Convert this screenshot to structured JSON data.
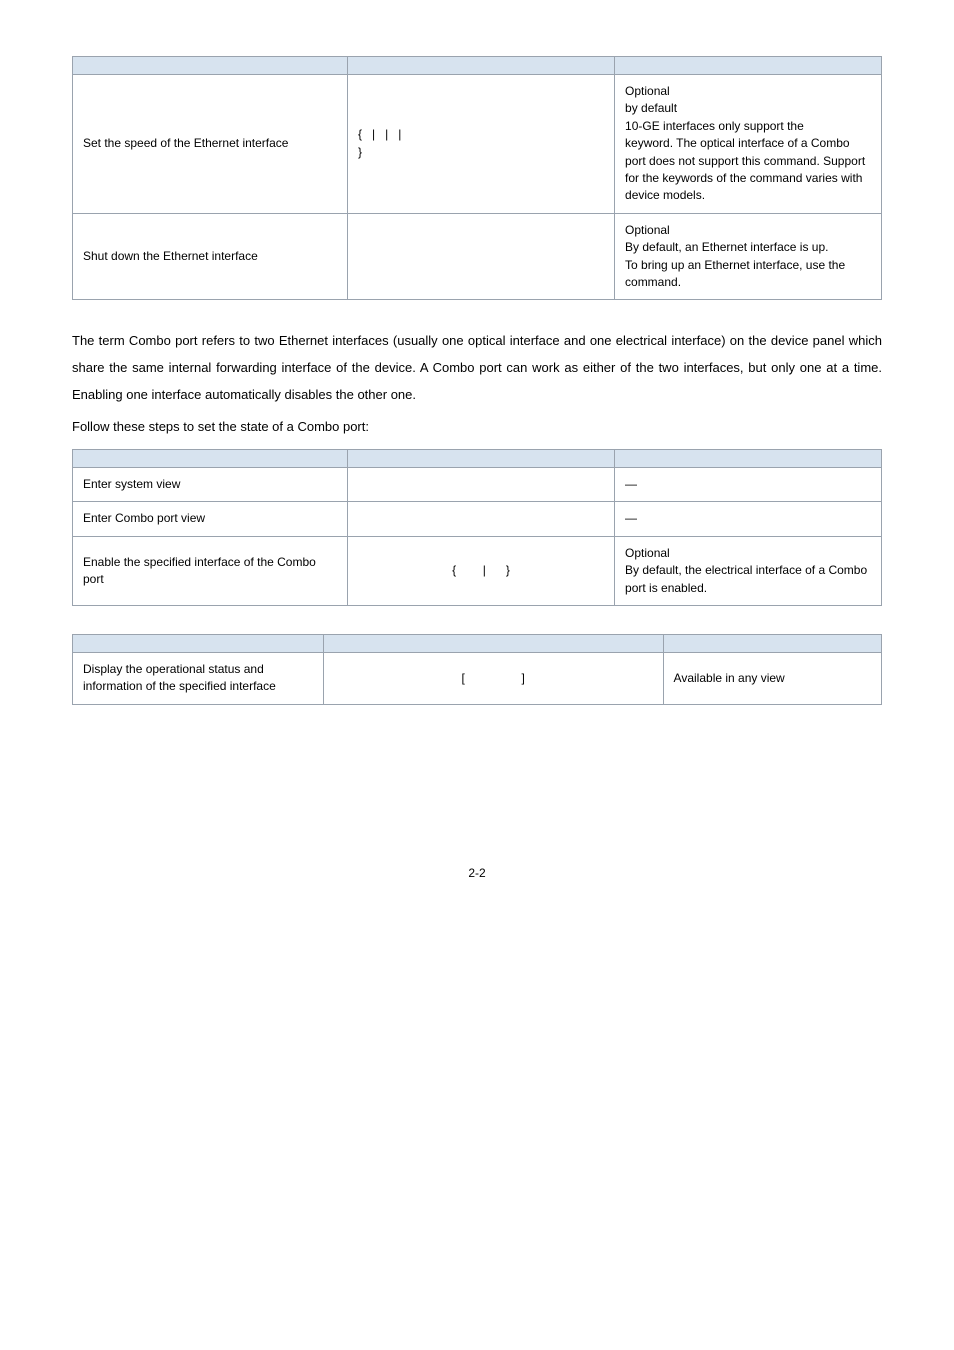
{
  "table1": {
    "rows": [
      {
        "a": "Set the speed of the Ethernet interface",
        "b": "{   |   |   |\n}",
        "c": "Optional\n      by default\n10-GE interfaces only support the\n      keyword. The optical interface of a Combo port does not support this command. Support for the keywords of the command varies with device models."
      },
      {
        "a": "Shut down the Ethernet interface",
        "b": "",
        "c": "Optional\nBy default, an Ethernet interface is up.\nTo bring up an Ethernet interface, use the\ncommand."
      }
    ]
  },
  "paragraph1": "The term Combo port refers to two Ethernet interfaces (usually one optical interface and one electrical interface) on the device panel which share the same internal forwarding interface of the device. A Combo port can work as either of the two interfaces, but only one at a time. Enabling one interface automatically disables the other one.",
  "stepLine": "Follow these steps to set the state of a Combo port:",
  "table2": {
    "rows": [
      {
        "a": "Enter system view",
        "b": "",
        "c": "—"
      },
      {
        "a": "Enter Combo port view",
        "b": "",
        "c": "—"
      },
      {
        "a": "Enable the specified interface of the Combo port",
        "b": "{        |      }",
        "c": "Optional\nBy default, the electrical interface of a Combo port is enabled."
      }
    ]
  },
  "table3": {
    "rows": [
      {
        "a": "Display the operational status and information of the specified interface",
        "b": "[                 ]",
        "c": "Available in any view"
      }
    ]
  },
  "pageNumber": "2-2"
}
